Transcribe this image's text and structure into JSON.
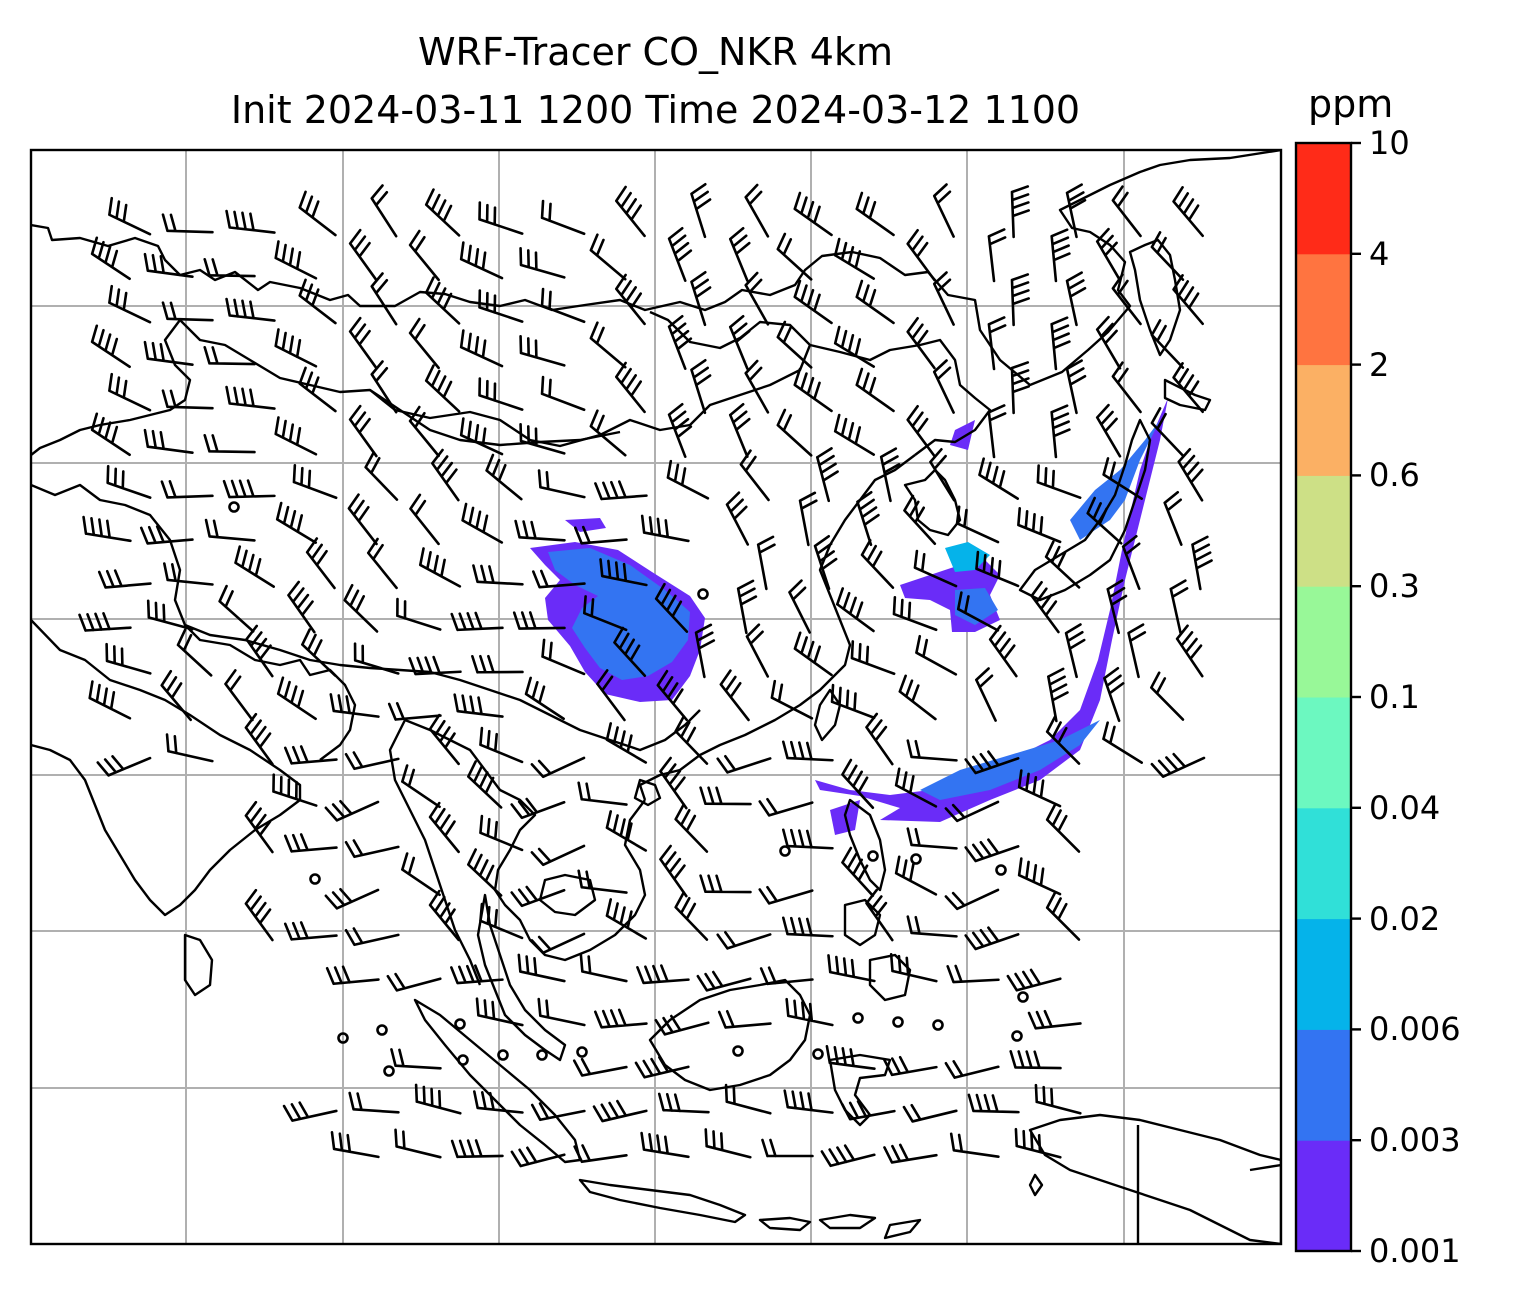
{
  "title": {
    "line1": "WRF-Tracer CO_NKR 4km",
    "line2": "Init 2024-03-11 1200 Time 2024-03-12 1100"
  },
  "colorbar": {
    "unit": "ppm",
    "levels": [
      "0.001",
      "0.003",
      "0.006",
      "0.02",
      "0.04",
      "0.1",
      "0.3",
      "0.6",
      "2",
      "4",
      "10"
    ],
    "colors": [
      "#6a2cf8",
      "#3374f2",
      "#05b3ea",
      "#30e0d8",
      "#6cf8c0",
      "#98f898",
      "#cde086",
      "#fbb064",
      "#ff7440",
      "#ff2b18"
    ]
  },
  "map": {
    "gridlines": true,
    "coastline_color": "#000000",
    "gridline_color": "#b0b0b0",
    "plume_colors": [
      "#6a2cf8",
      "#3374f2",
      "#05b3ea"
    ],
    "wind_barbs": true
  }
}
